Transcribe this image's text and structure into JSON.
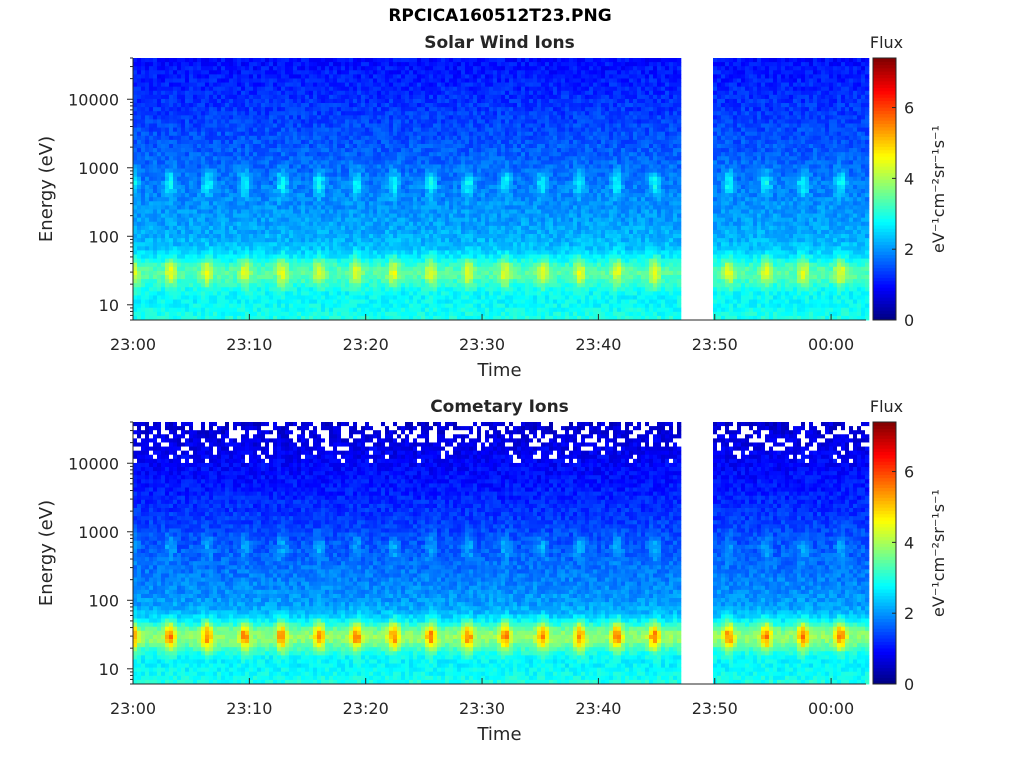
{
  "figure_title": "RPCICA160512T23.PNG",
  "colors": {
    "gap": "#ffffff",
    "axis": "#262626"
  },
  "chart_data": [
    {
      "type": "heatmap",
      "title": "Solar Wind Ions",
      "xlabel": "Time",
      "ylabel": "Energy (eV)",
      "x_ticks": [
        "23:00",
        "23:10",
        "23:20",
        "23:30",
        "23:40",
        "23:50",
        "00:00"
      ],
      "x_range": [
        "23:00",
        "00:03"
      ],
      "y_scale": "log",
      "y_ticks": [
        10,
        100,
        1000,
        10000
      ],
      "y_range": [
        6,
        40000
      ],
      "data_gap": [
        "23:47",
        "23:50"
      ],
      "colorbar": {
        "label": "Flux",
        "units": "eV⁻¹cm⁻²sr⁻¹s⁻¹",
        "range": [
          0,
          7.4
        ],
        "ticks": [
          0,
          2,
          4,
          6
        ],
        "colormap": "jet"
      },
      "features": [
        {
          "energy_eV": 30,
          "flux": 5.0,
          "period_min": 3.2,
          "note": ""
        },
        {
          "energy_eV": 600,
          "flux": 3.6,
          "period_min": 3.2,
          "note": ""
        }
      ],
      "background_flux": {
        "low_energy": 3.0,
        "high_energy": 1.0
      }
    },
    {
      "type": "heatmap",
      "title": "Cometary Ions",
      "xlabel": "Time",
      "ylabel": "Energy (eV)",
      "x_ticks": [
        "23:00",
        "23:10",
        "23:20",
        "23:30",
        "23:40",
        "23:50",
        "00:00"
      ],
      "x_range": [
        "23:00",
        "00:03"
      ],
      "y_scale": "log",
      "y_ticks": [
        10,
        100,
        1000,
        10000
      ],
      "y_range": [
        6,
        40000
      ],
      "data_gap": [
        "23:47",
        "23:50"
      ],
      "colorbar": {
        "label": "Flux",
        "units": "eV⁻¹cm⁻²sr⁻¹s⁻¹",
        "range": [
          0,
          7.4
        ],
        "ticks": [
          0,
          2,
          4,
          6
        ],
        "colormap": "jet"
      },
      "features": [
        {
          "energy_eV": 30,
          "flux": 6.2,
          "period_min": 3.2
        },
        {
          "energy_eV": 600,
          "flux": 3.2,
          "period_min": 3.2
        }
      ],
      "background_flux": {
        "low_energy": 3.0,
        "high_energy": 0.6
      }
    }
  ]
}
